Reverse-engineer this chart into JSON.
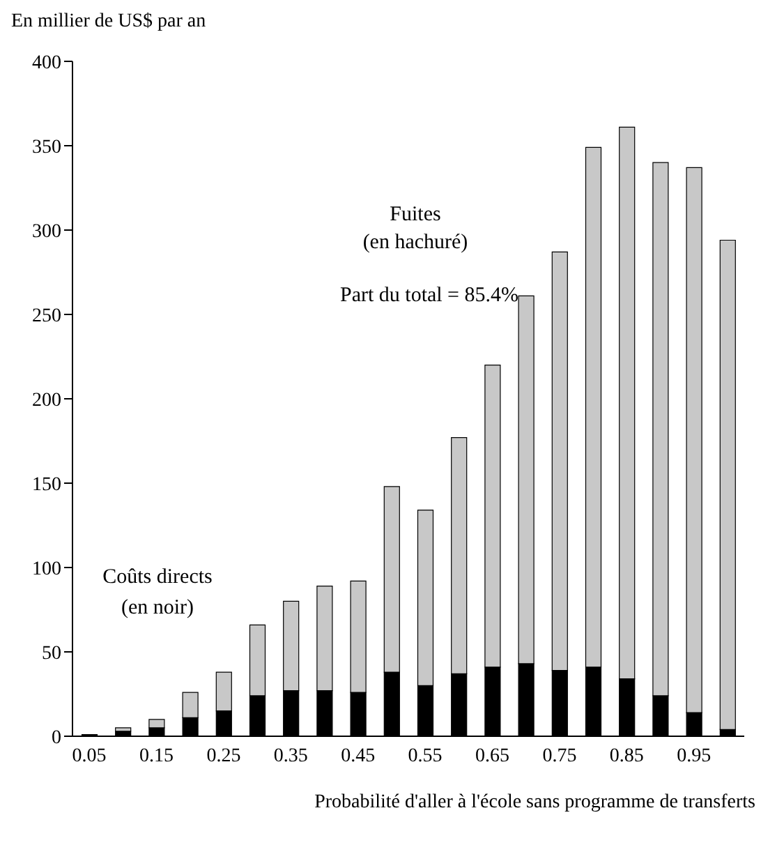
{
  "chart_data": {
    "type": "bar",
    "stacked": true,
    "ylabel": "En millier de US$ par an",
    "xlabel": "Probabilité d'aller à l'école sans programme de transferts",
    "categories": [
      "0.05",
      null,
      "0.15",
      null,
      "0.25",
      null,
      "0.35",
      null,
      "0.45",
      null,
      "0.55",
      null,
      "0.65",
      null,
      "0.75",
      null,
      "0.85",
      null,
      "0.95",
      null
    ],
    "series": [
      {
        "color": "#000000",
        "values": [
          1,
          3,
          5,
          11,
          15,
          24,
          27,
          27,
          26,
          38,
          30,
          37,
          41,
          43,
          39,
          41,
          34,
          24,
          14,
          4
        ]
      },
      {
        "color": "#c8c8c8",
        "values": [
          null,
          2,
          5,
          15,
          23,
          42,
          53,
          62,
          66,
          110,
          104,
          140,
          179,
          218,
          248,
          308,
          327,
          316,
          323,
          290
        ]
      }
    ],
    "ylim": [
      0,
      400
    ],
    "yticks": [
      0,
      50,
      100,
      150,
      200,
      250,
      300,
      350,
      400
    ],
    "grid": false,
    "legend": false,
    "annotations": [
      "Fuites",
      "(en hachuré)",
      "Part du total = 85.4%",
      "Coûts directs",
      "(en noir)"
    ]
  }
}
